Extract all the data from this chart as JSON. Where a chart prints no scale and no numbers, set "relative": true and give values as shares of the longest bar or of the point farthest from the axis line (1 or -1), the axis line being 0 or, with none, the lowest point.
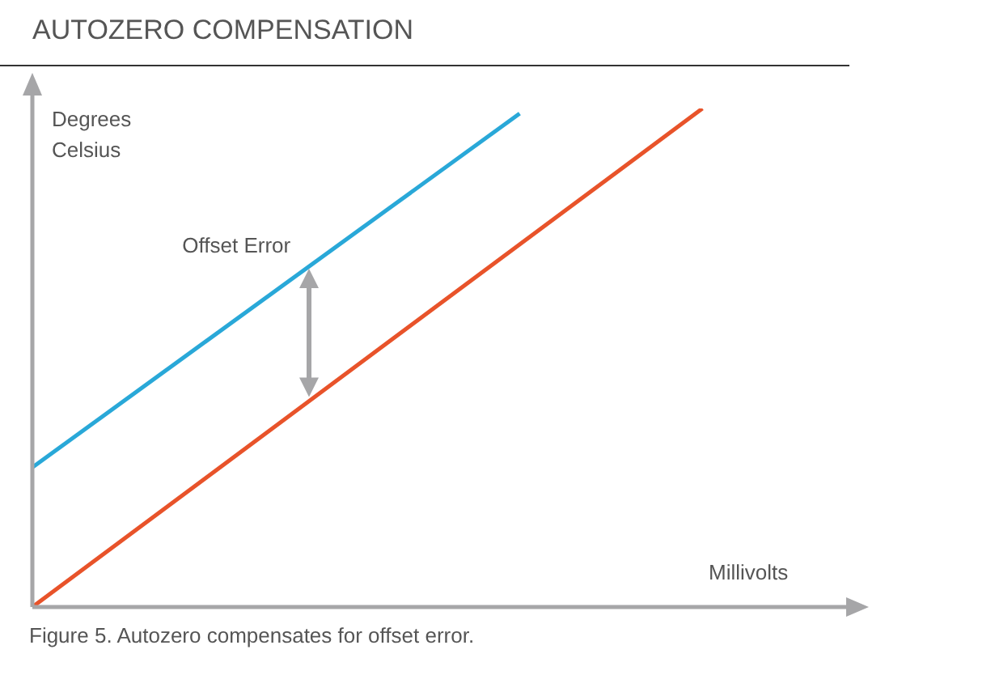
{
  "chart_data": {
    "type": "line",
    "title": "AUTOZERO COMPENSATION",
    "xlabel": "Millivolts",
    "ylabel": "Degrees Celsius",
    "relative": true,
    "tick_labels": false,
    "legend": false,
    "marker": "none",
    "line_style": "solid",
    "categories": [
      null,
      null,
      null,
      null,
      null,
      null,
      null,
      null,
      null,
      null,
      null,
      null,
      null,
      null,
      null,
      null,
      null,
      null,
      null,
      null,
      null,
      null,
      null,
      null,
      null,
      null,
      null,
      null,
      null,
      null,
      null,
      null,
      null,
      null,
      null,
      null,
      null,
      null,
      null,
      null,
      null
    ],
    "series": [
      {
        "color": "#29a8d8",
        "values": [
          0.28,
          null,
          null,
          null,
          null,
          null,
          null,
          null,
          null,
          null,
          null,
          null,
          null,
          null,
          null,
          null,
          null,
          null,
          null,
          null,
          null,
          null,
          null,
          null,
          0.99,
          null,
          null,
          null,
          null,
          null,
          null,
          null,
          null,
          null,
          null,
          null,
          null,
          null,
          null,
          null,
          null
        ]
      },
      {
        "color": "#e8532a",
        "values": [
          0,
          null,
          null,
          null,
          null,
          null,
          null,
          null,
          null,
          null,
          null,
          null,
          null,
          null,
          null,
          null,
          null,
          null,
          null,
          null,
          null,
          null,
          null,
          null,
          null,
          null,
          null,
          null,
          null,
          null,
          null,
          null,
          null,
          1,
          null,
          null,
          null,
          null,
          null,
          null,
          null
        ]
      }
    ],
    "annotations": [
      "Offset Error",
      "Figure 5. Autozero compensates for offset error."
    ]
  }
}
